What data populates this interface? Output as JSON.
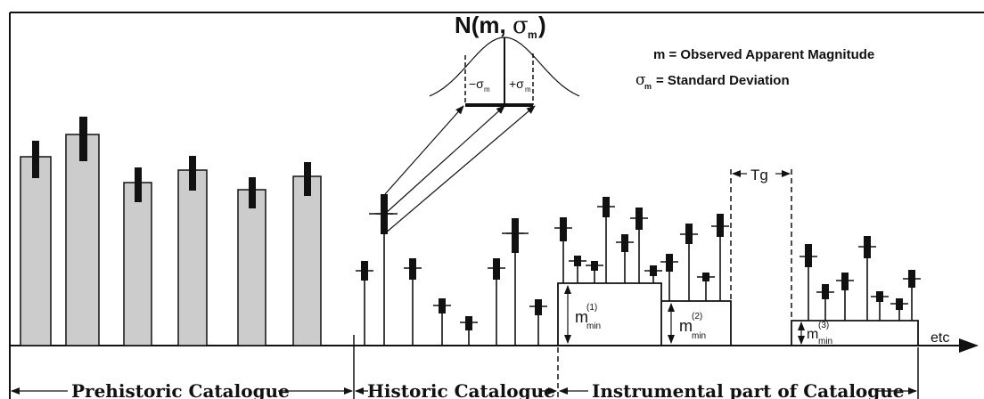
{
  "header": {
    "distribution_label_main": "N(m,",
    "distribution_label_sigma": "σ",
    "distribution_label_sub": "m",
    "distribution_label_close": ")"
  },
  "legend": {
    "line1": "m = Observed Apparent Magnitude",
    "line2_symbol": "σ",
    "line2_sub": "m",
    "line2_text": "= Standard Deviation"
  },
  "bell": {
    "minus_sigma": "−σ",
    "plus_sigma": "+σ",
    "sigma_sub": "m"
  },
  "gap_label": "Tg",
  "mmin_labels": [
    {
      "base": "m",
      "sup": "(1)",
      "sub": "min"
    },
    {
      "base": "m",
      "sup": "(2)",
      "sub": "min"
    },
    {
      "base": "m",
      "sup": "(3)",
      "sub": "min"
    }
  ],
  "axis_end_label": "etc",
  "catalogues": {
    "prehistoric": "Prehistoric Catalogue",
    "historic": "Historic Catalogue",
    "instrumental": "Instrumental part of Catalogue"
  },
  "colors": {
    "bar_fill": "#cccccc",
    "ink": "#111111"
  }
}
